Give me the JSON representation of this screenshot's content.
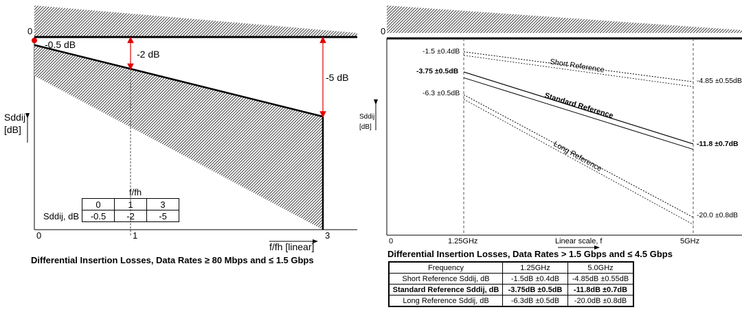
{
  "chart_data": [
    {
      "type": "line",
      "title": "Differential Insertion Losses, Data Rates ≥ 80 Mbps and ≤ 1.5 Gbps",
      "xlabel": "f/fh [linear]",
      "ylabel_line1": "Sddij",
      "ylabel_line2": "[dB]",
      "x_ticks": [
        "0",
        "1",
        "3"
      ],
      "y_zero_label": "0",
      "x": [
        0,
        1,
        3
      ],
      "series": [
        {
          "values": [
            -0.5,
            -2,
            -5
          ]
        }
      ],
      "annotations": [
        "-0.5 dB",
        "-2 dB",
        "-5 dB"
      ],
      "table": {
        "header_label": "f/fh",
        "row_label": "Sddij, dB",
        "columns": [
          "0",
          "1",
          "3"
        ],
        "values": [
          "-0.5",
          "-2",
          "-5"
        ]
      }
    },
    {
      "type": "line",
      "title": "Differential Insertion Losses, Data Rates > 1.5 Gbps and ≤ 4.5 Gbps",
      "xlabel": "Linear scale, f",
      "ylabel_line1": "Sddij",
      "ylabel_line2": "[dB]",
      "x_ticks": [
        "0",
        "1.25GHz",
        "5GHz"
      ],
      "y_zero_label": "0",
      "x": [
        1.25,
        5
      ],
      "series": [
        {
          "name": "Short Reference",
          "values": [
            -1.5,
            -4.85
          ],
          "left_label": "-1.5 ±0.4dB",
          "right_label": "-4.85 ±0.55dB",
          "style": "dotted"
        },
        {
          "name": "Standard Reference",
          "values": [
            -3.75,
            -11.8
          ],
          "left_label": "-3.75 ±0.5dB",
          "right_label": "-11.8 ±0.7dB",
          "style": "solid"
        },
        {
          "name": "Long Reference",
          "values": [
            -6.3,
            -20.0
          ],
          "left_label": "-6.3 ±0.5dB",
          "right_label": "-20.0 ±0.8dB",
          "style": "dotted"
        }
      ],
      "table": {
        "headers": [
          "Frequency",
          "1.25GHz",
          "5.0GHz"
        ],
        "rows": [
          [
            "Short Reference  Sddij, dB",
            "-1.5dB ±0.4dB",
            "-4.85dB ±0.55dB"
          ],
          [
            "Standard  Reference  Sddij, dB",
            "-3.75dB ±0.5dB",
            "-11.8dB ±0.7dB"
          ],
          [
            "Long  Reference  Sddij, dB",
            "-6.3dB ±0.5dB",
            "-20.0dB ±0.8dB"
          ]
        ]
      }
    }
  ]
}
